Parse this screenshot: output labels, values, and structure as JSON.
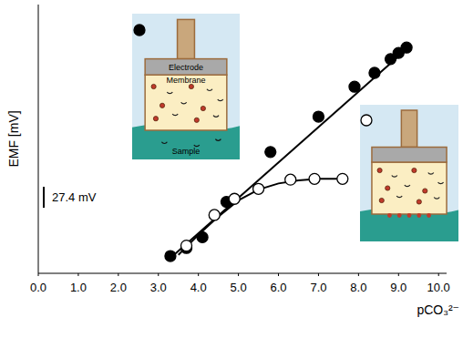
{
  "chart_data": {
    "type": "scatter",
    "x_label": "pCO₃²⁻",
    "y_label": "EMF [mV]",
    "xlim": [
      0,
      10.2
    ],
    "ylim": [
      0,
      350
    ],
    "xticks": [
      {
        "value": 0,
        "label": "0.0"
      },
      {
        "value": 1,
        "label": "1.0"
      },
      {
        "value": 2,
        "label": "2.0"
      },
      {
        "value": 3,
        "label": "3.0"
      },
      {
        "value": 4,
        "label": "4.0"
      },
      {
        "value": 5,
        "label": "5.0"
      },
      {
        "value": 6,
        "label": "6.0"
      },
      {
        "value": 7,
        "label": "7.0"
      },
      {
        "value": 8,
        "label": "8.0"
      },
      {
        "value": 9,
        "label": "9.0"
      },
      {
        "value": 10,
        "label": "10.0"
      }
    ],
    "yticks": [],
    "tick_labels": "x",
    "grid": false,
    "scale_bar": {
      "value": 27.4,
      "label": "27.4 mV"
    },
    "annotations": [
      "Electrode",
      "Membrane",
      "Sample"
    ],
    "series": [
      {
        "type": "scatter",
        "marker": "filled_circle",
        "color": "#000000",
        "x": [
          3.3,
          3.7,
          4.1,
          4.7,
          5.8,
          7.0,
          7.9,
          8.4,
          8.8,
          9.0,
          9.2
        ],
        "values": [
          22.5,
          33,
          47,
          93,
          158,
          204,
          243,
          261,
          279,
          287,
          294
        ]
      },
      {
        "type": "scatter",
        "marker": "open_circle",
        "color": "#000000",
        "x": [
          3.7,
          4.4,
          4.9,
          5.5,
          6.3,
          6.9,
          7.6
        ],
        "values": [
          36,
          76,
          97,
          110,
          122,
          123,
          123
        ]
      },
      {
        "type": "line",
        "line_style": "solid",
        "color": "#000000",
        "x": [
          3.3,
          9.2
        ],
        "values": [
          20,
          292
        ]
      },
      {
        "type": "line",
        "line_style": "solid",
        "color": "#000000",
        "x": [
          3.5,
          4.0,
          4.5,
          5.0,
          5.5,
          6.0,
          6.5,
          7.0,
          7.6
        ],
        "values": [
          24,
          50,
          74,
          95,
          109,
          117,
          121,
          123,
          123
        ]
      }
    ]
  }
}
